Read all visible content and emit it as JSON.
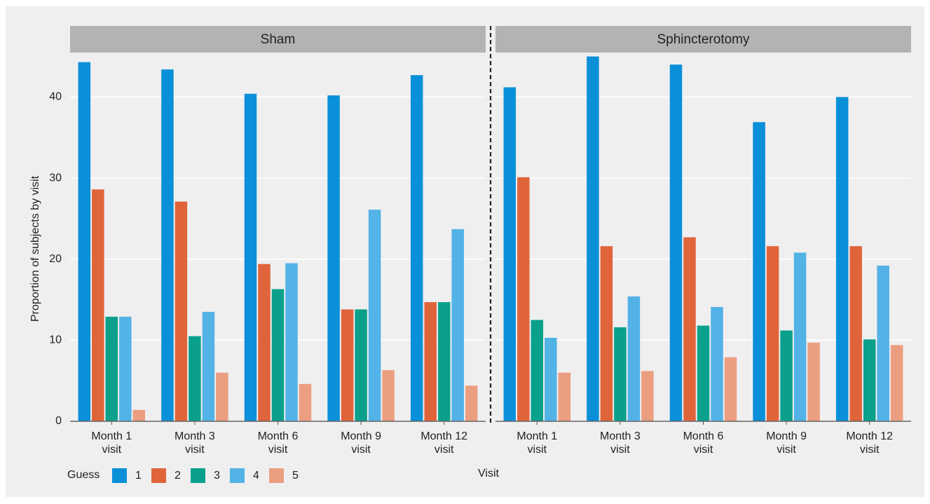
{
  "chart_data": {
    "type": "bar",
    "ylabel": "Proportion of subjects by visit",
    "xlabel": "Visit",
    "ylim": [
      0,
      46
    ],
    "yticks": [
      0,
      10,
      20,
      30,
      40
    ],
    "grid": true,
    "legend": {
      "title": "Guess",
      "position": "bottom-left",
      "entries": [
        "1",
        "2",
        "3",
        "4",
        "5"
      ]
    },
    "colors": [
      "#0a8fd9",
      "#e0643a",
      "#0aa08c",
      "#53b2e6",
      "#eb9f80"
    ],
    "categories": [
      [
        "Month 1",
        "visit"
      ],
      [
        "Month 3",
        "visit"
      ],
      [
        "Month 6",
        "visit"
      ],
      [
        "Month 9",
        "visit"
      ],
      [
        "Month 12",
        "visit"
      ]
    ],
    "panels": [
      {
        "title": "Sham",
        "series": [
          {
            "name": "1",
            "values": [
              44.3,
              43.4,
              40.4,
              40.2,
              42.7
            ]
          },
          {
            "name": "2",
            "values": [
              28.6,
              27.1,
              19.4,
              13.8,
              14.7
            ]
          },
          {
            "name": "3",
            "values": [
              12.9,
              10.5,
              16.3,
              13.8,
              14.7
            ]
          },
          {
            "name": "4",
            "values": [
              12.9,
              13.5,
              19.5,
              26.1,
              23.7
            ]
          },
          {
            "name": "5",
            "values": [
              1.4,
              6.0,
              4.6,
              6.3,
              4.4
            ]
          }
        ]
      },
      {
        "title": "Sphincterotomy",
        "series": [
          {
            "name": "1",
            "values": [
              41.2,
              45.0,
              44.0,
              36.9,
              40.0
            ]
          },
          {
            "name": "2",
            "values": [
              30.1,
              21.6,
              22.7,
              21.6,
              21.6
            ]
          },
          {
            "name": "3",
            "values": [
              12.5,
              11.6,
              11.8,
              11.2,
              10.1
            ]
          },
          {
            "name": "4",
            "values": [
              10.3,
              15.4,
              14.1,
              20.8,
              19.2
            ]
          },
          {
            "name": "5",
            "values": [
              6.0,
              6.2,
              7.9,
              9.7,
              9.4
            ]
          }
        ]
      }
    ]
  }
}
